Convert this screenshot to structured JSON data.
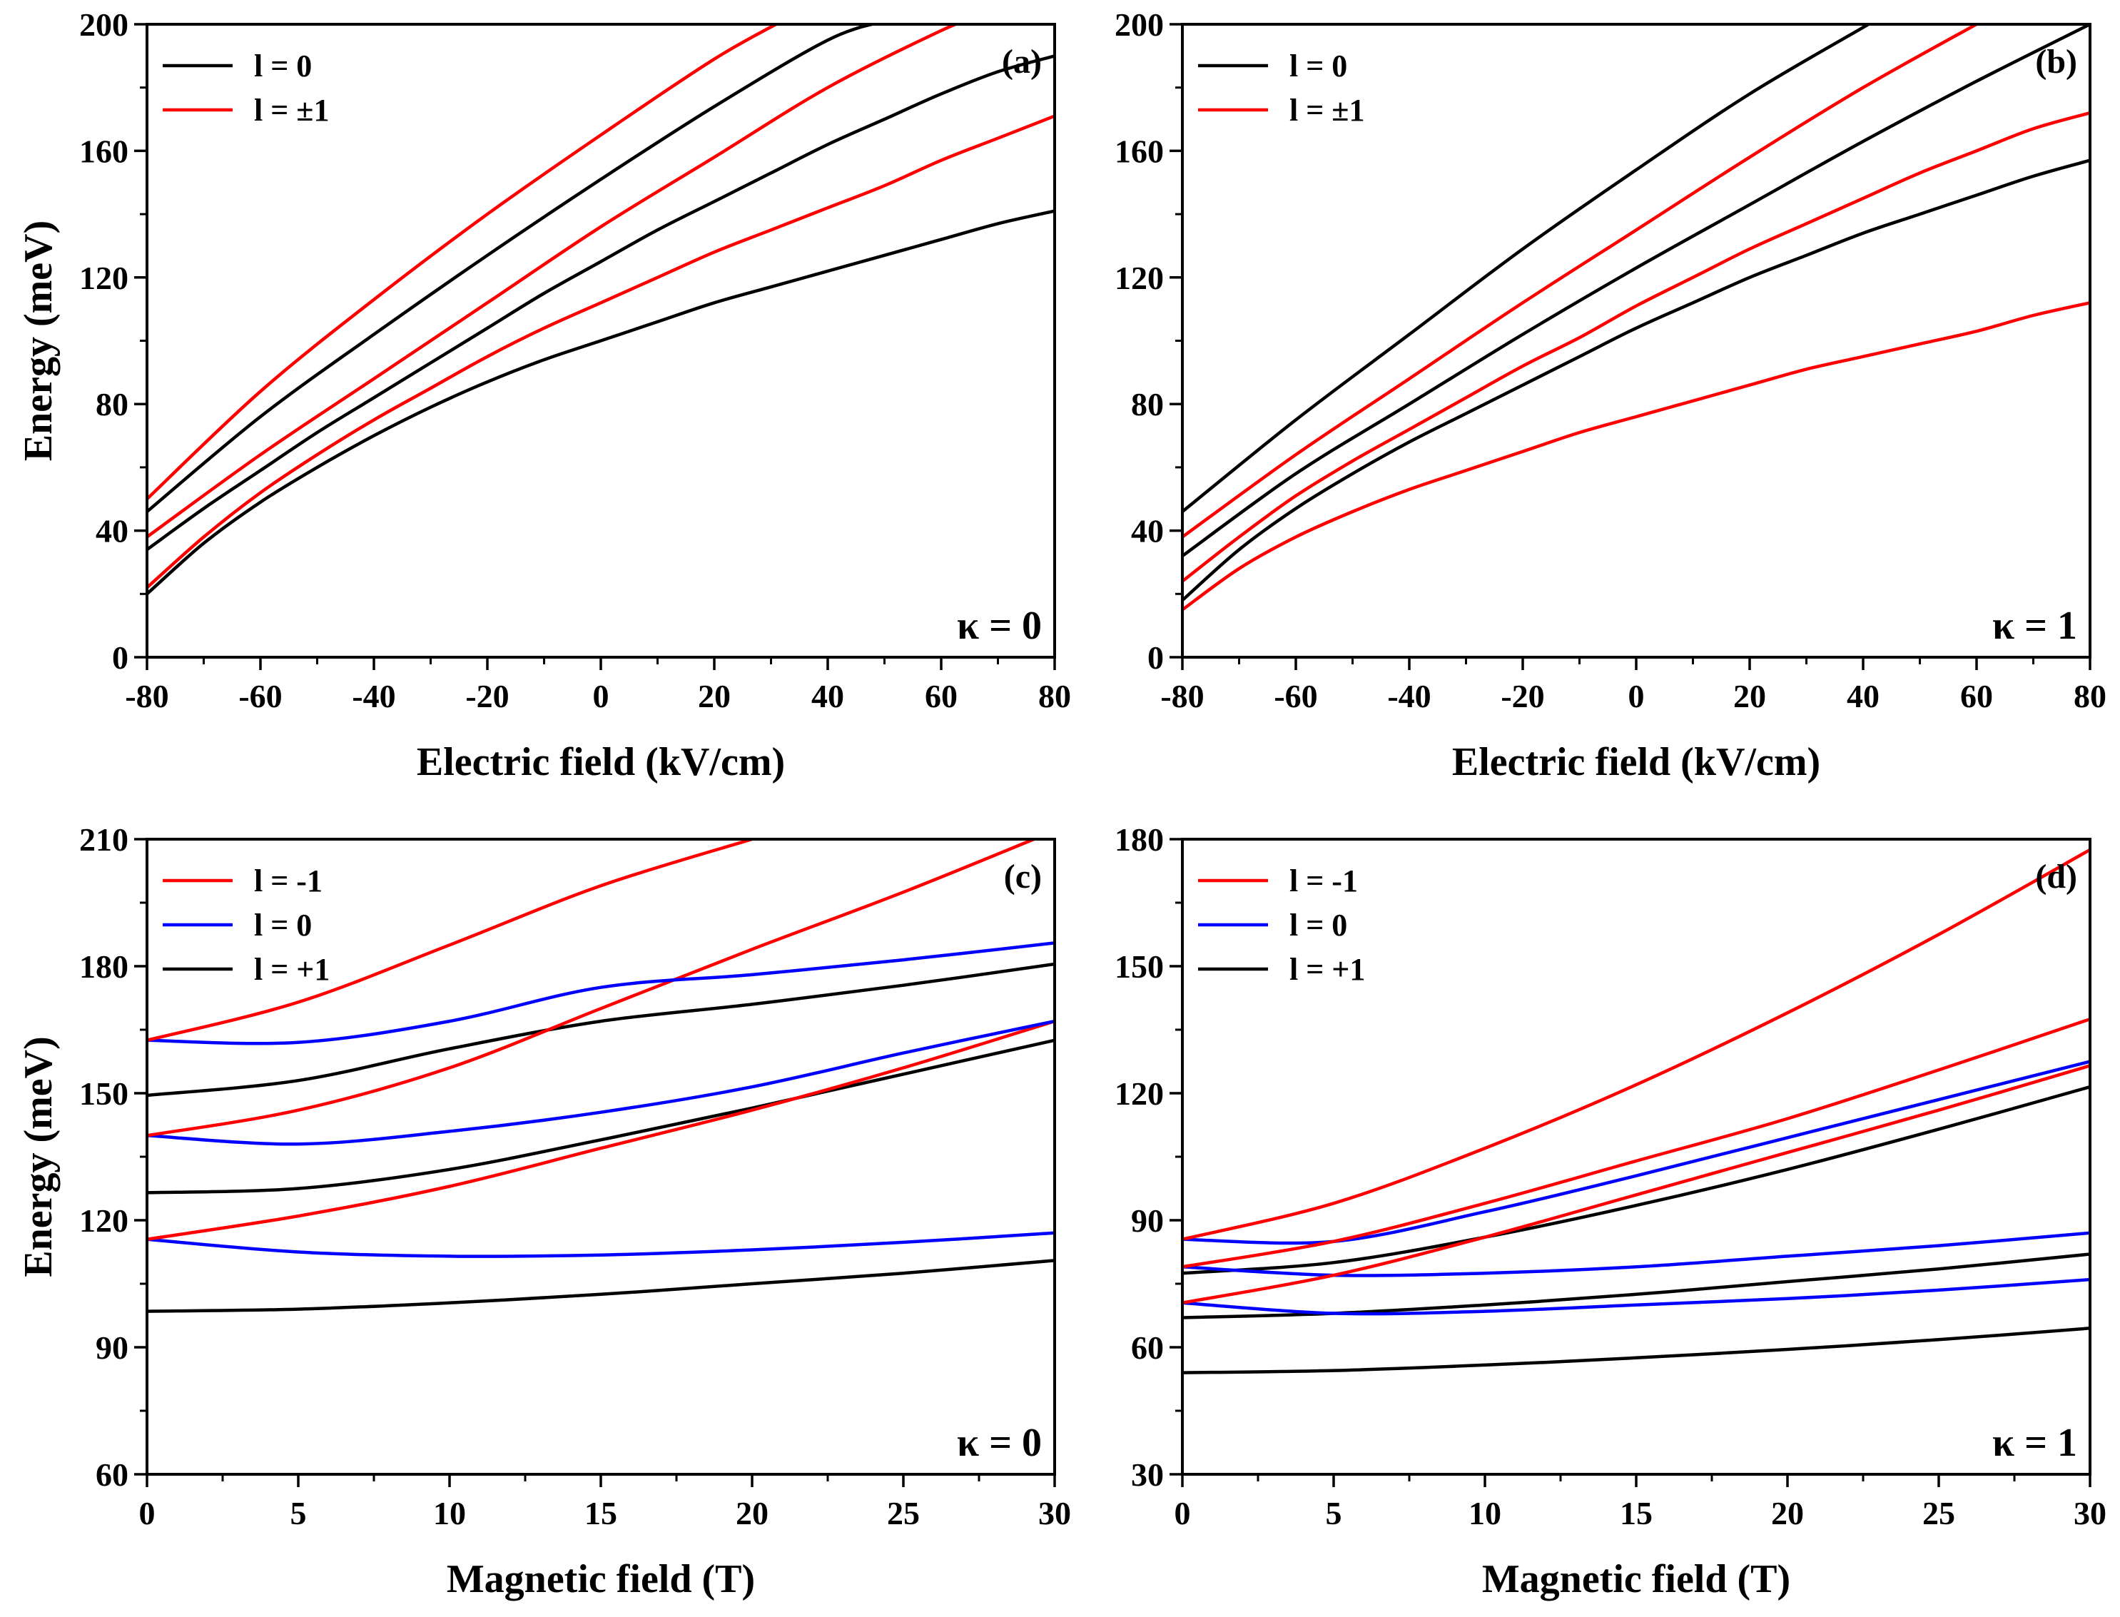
{
  "colors": {
    "black": "#000000",
    "red": "#ff0000",
    "blue": "#0000ff"
  },
  "chart_data": [
    {
      "type": "line",
      "panel_label": "(a)",
      "annotation": "κ = 0",
      "xlabel": "Electric field (kV/cm)",
      "ylabel": "Energy (meV)",
      "xlim": [
        -80,
        80
      ],
      "ylim": [
        0,
        200
      ],
      "xticks": [
        -80,
        -60,
        -40,
        -20,
        0,
        20,
        40,
        60,
        80
      ],
      "yticks": [
        0,
        40,
        80,
        120,
        160,
        200
      ],
      "legend": [
        {
          "label": "l = 0",
          "color": "black"
        },
        {
          "label": "l = ±1",
          "color": "red"
        }
      ],
      "series": [
        {
          "name": "l = 0 (1)",
          "color": "black",
          "x": [
            -80,
            -70,
            -60,
            -50,
            -40,
            -30,
            -20,
            -10,
            0,
            10,
            20,
            30,
            40,
            50,
            60,
            70,
            80
          ],
          "y": [
            20,
            36,
            49,
            60,
            70,
            79,
            87,
            94,
            100,
            106,
            112,
            117,
            122,
            127,
            132,
            137,
            141
          ]
        },
        {
          "name": "l = ±1 (1)",
          "color": "red",
          "x": [
            -80,
            -70,
            -60,
            -50,
            -40,
            -30,
            -20,
            -10,
            0,
            10,
            20,
            30,
            40,
            50,
            60,
            70,
            80
          ],
          "y": [
            22,
            38,
            52,
            64,
            75,
            85,
            95,
            104,
            112,
            120,
            128,
            135,
            142,
            149,
            157,
            164,
            171
          ]
        },
        {
          "name": "l = 0 (2)",
          "color": "black",
          "x": [
            -80,
            -70,
            -60,
            -50,
            -40,
            -30,
            -20,
            -10,
            0,
            10,
            20,
            30,
            40,
            50,
            60,
            70,
            80
          ],
          "y": [
            34,
            47,
            59,
            71,
            82,
            93,
            104,
            115,
            125,
            135,
            144,
            153,
            162,
            170,
            178,
            185,
            190
          ]
        },
        {
          "name": "l = ±1 (2)",
          "color": "red",
          "x": [
            -80,
            -60,
            -40,
            -20,
            0,
            20,
            40,
            60,
            66
          ],
          "y": [
            38,
            64,
            88,
            112,
            136,
            158,
            180,
            198,
            202
          ]
        },
        {
          "name": "l = 0 (3)",
          "color": "black",
          "x": [
            -80,
            -60,
            -40,
            -20,
            0,
            20,
            40,
            50
          ],
          "y": [
            46,
            76,
            102,
            127,
            151,
            174,
            195,
            201
          ]
        },
        {
          "name": "l = ±1 (3)",
          "color": "red",
          "x": [
            -80,
            -60,
            -40,
            -20,
            0,
            20,
            33
          ],
          "y": [
            50,
            84,
            113,
            140,
            165,
            189,
            202
          ]
        }
      ]
    },
    {
      "type": "line",
      "panel_label": "(b)",
      "annotation": "κ = 1",
      "xlabel": "Electric field (kV/cm)",
      "ylabel": "",
      "xlim": [
        -80,
        80
      ],
      "ylim": [
        0,
        200
      ],
      "xticks": [
        -80,
        -60,
        -40,
        -20,
        0,
        20,
        40,
        60,
        80
      ],
      "yticks": [
        0,
        40,
        80,
        120,
        160,
        200
      ],
      "legend": [
        {
          "label": "l = 0",
          "color": "black"
        },
        {
          "label": "l = ±1",
          "color": "red"
        }
      ],
      "series": [
        {
          "name": "l = ±1 (1)",
          "color": "red",
          "x": [
            -80,
            -70,
            -60,
            -50,
            -40,
            -30,
            -20,
            -10,
            0,
            10,
            20,
            30,
            40,
            50,
            60,
            70,
            80
          ],
          "y": [
            15,
            28,
            38,
            46,
            53,
            59,
            65,
            71,
            76,
            81,
            86,
            91,
            95,
            99,
            103,
            108,
            112
          ]
        },
        {
          "name": "l = 0 (1)",
          "color": "black",
          "x": [
            -80,
            -70,
            -60,
            -50,
            -40,
            -30,
            -20,
            -10,
            0,
            10,
            20,
            30,
            40,
            50,
            60,
            70,
            80
          ],
          "y": [
            18,
            34,
            47,
            58,
            68,
            77,
            86,
            95,
            104,
            112,
            120,
            127,
            134,
            140,
            146,
            152,
            157
          ]
        },
        {
          "name": "l = ±1 (2)",
          "color": "red",
          "x": [
            -80,
            -70,
            -60,
            -50,
            -40,
            -30,
            -20,
            -10,
            0,
            10,
            20,
            30,
            40,
            50,
            60,
            70,
            80
          ],
          "y": [
            24,
            38,
            51,
            62,
            72,
            82,
            92,
            101,
            111,
            120,
            129,
            137,
            145,
            153,
            160,
            167,
            172
          ]
        },
        {
          "name": "l = 0 (2)",
          "color": "black",
          "x": [
            -80,
            -60,
            -40,
            -20,
            0,
            20,
            40,
            60,
            80
          ],
          "y": [
            32,
            58,
            80,
            102,
            123,
            143,
            163,
            182,
            200
          ]
        },
        {
          "name": "l = ±1 (3)",
          "color": "red",
          "x": [
            -80,
            -60,
            -40,
            -20,
            0,
            20,
            40,
            61
          ],
          "y": [
            38,
            64,
            88,
            112,
            135,
            158,
            180,
            201
          ]
        },
        {
          "name": "l = 0 (3)",
          "color": "black",
          "x": [
            -80,
            -60,
            -40,
            -20,
            0,
            20,
            40,
            42
          ],
          "y": [
            46,
            75,
            102,
            129,
            154,
            178,
            199,
            201
          ]
        }
      ]
    },
    {
      "type": "line",
      "panel_label": "(c)",
      "annotation": "κ = 0",
      "xlabel": "Magnetic field (T)",
      "ylabel": "Energy (meV)",
      "xlim": [
        0,
        30
      ],
      "ylim": [
        60,
        210
      ],
      "xticks": [
        0,
        5,
        10,
        15,
        20,
        25,
        30
      ],
      "yticks": [
        60,
        90,
        120,
        150,
        180,
        210
      ],
      "legend": [
        {
          "label": "l = -1",
          "color": "red"
        },
        {
          "label": "l = 0",
          "color": "blue"
        },
        {
          "label": "l = +1",
          "color": "black"
        }
      ],
      "series": [
        {
          "name": "l = +1 (1)",
          "color": "black",
          "x": [
            0,
            5,
            10,
            15,
            20,
            25,
            30
          ],
          "y": [
            98.5,
            99,
            100.5,
            102.5,
            105,
            107.5,
            110.5
          ]
        },
        {
          "name": "l = 0 (1)",
          "color": "blue",
          "x": [
            0,
            5,
            10,
            15,
            20,
            25,
            30
          ],
          "y": [
            115.5,
            112.5,
            111.5,
            111.8,
            113,
            114.8,
            117
          ]
        },
        {
          "name": "l = +1 (2)",
          "color": "black",
          "x": [
            0,
            5,
            10,
            15,
            20,
            25,
            30
          ],
          "y": [
            126.5,
            127.5,
            132,
            139,
            146.5,
            154.5,
            162.5
          ]
        },
        {
          "name": "l = -1 (1)",
          "color": "red",
          "x": [
            0,
            5,
            10,
            15,
            20,
            25,
            30
          ],
          "y": [
            115.5,
            121,
            128,
            137,
            146,
            156,
            167
          ]
        },
        {
          "name": "l = 0 (2)",
          "color": "blue",
          "x": [
            0,
            5,
            10,
            15,
            20,
            25,
            30
          ],
          "y": [
            140,
            138,
            141,
            145.5,
            151.5,
            159.5,
            167
          ]
        },
        {
          "name": "l = +1 (3)",
          "color": "black",
          "x": [
            0,
            5,
            10,
            15,
            20,
            25,
            30
          ],
          "y": [
            149.5,
            153,
            160.5,
            167,
            171,
            175.5,
            180.5
          ]
        },
        {
          "name": "l = -1 (2)",
          "color": "red",
          "x": [
            0,
            5,
            10,
            15,
            20,
            25,
            30
          ],
          "y": [
            140,
            146,
            156,
            170,
            184,
            197.5,
            212
          ]
        },
        {
          "name": "l = 0 (3)",
          "color": "blue",
          "x": [
            0,
            5,
            10,
            15,
            20,
            25,
            30
          ],
          "y": [
            162.5,
            162,
            167,
            175,
            178,
            181.5,
            185.5
          ]
        },
        {
          "name": "l = -1 (3)",
          "color": "red",
          "x": [
            0,
            5,
            10,
            15,
            20
          ],
          "y": [
            162.5,
            171.5,
            185,
            199,
            210
          ]
        }
      ]
    },
    {
      "type": "line",
      "panel_label": "(d)",
      "annotation": "κ = 1",
      "xlabel": "Magnetic field (T)",
      "ylabel": "",
      "xlim": [
        0,
        30
      ],
      "ylim": [
        30,
        180
      ],
      "xticks": [
        0,
        5,
        10,
        15,
        20,
        25,
        30
      ],
      "yticks": [
        30,
        60,
        90,
        120,
        150,
        180
      ],
      "legend": [
        {
          "label": "l = -1",
          "color": "red"
        },
        {
          "label": "l = 0",
          "color": "blue"
        },
        {
          "label": "l = +1",
          "color": "black"
        }
      ],
      "series": [
        {
          "name": "l = +1 (1)",
          "color": "black",
          "x": [
            0,
            5,
            10,
            15,
            20,
            25,
            30
          ],
          "y": [
            54,
            54.5,
            55.8,
            57.5,
            59.5,
            61.8,
            64.5
          ]
        },
        {
          "name": "l = +1 (2)",
          "color": "black",
          "x": [
            0,
            5,
            10,
            15,
            20,
            25,
            30
          ],
          "y": [
            67,
            68,
            70,
            72.5,
            75.5,
            78.5,
            82
          ]
        },
        {
          "name": "l = 0 (1)",
          "color": "blue",
          "x": [
            0,
            5,
            10,
            15,
            20,
            25,
            30
          ],
          "y": [
            70.5,
            68,
            68.5,
            70,
            71.5,
            73.5,
            76
          ]
        },
        {
          "name": "l = +1 (3)",
          "color": "black",
          "x": [
            0,
            5,
            10,
            15,
            20,
            25,
            30
          ],
          "y": [
            77.5,
            80,
            86,
            93.5,
            102,
            111.5,
            121.5
          ]
        },
        {
          "name": "l = 0 (2)",
          "color": "blue",
          "x": [
            0,
            5,
            10,
            15,
            20,
            25,
            30
          ],
          "y": [
            79,
            77,
            77.5,
            79,
            81.5,
            84,
            87
          ]
        },
        {
          "name": "l = -1 (1)",
          "color": "red",
          "x": [
            0,
            5,
            10,
            15,
            20,
            25,
            30
          ],
          "y": [
            70.5,
            77,
            86,
            96,
            106,
            116,
            126.5
          ]
        },
        {
          "name": "l = 0 (3)",
          "color": "blue",
          "x": [
            0,
            5,
            10,
            15,
            20,
            25,
            30
          ],
          "y": [
            85.5,
            85,
            92,
            100.5,
            109.5,
            118.5,
            127.5
          ]
        },
        {
          "name": "l = -1 (2)",
          "color": "red",
          "x": [
            0,
            5,
            10,
            15,
            20,
            25,
            30
          ],
          "y": [
            79,
            85,
            94,
            104,
            114,
            125.5,
            137.5
          ]
        },
        {
          "name": "l = -1 (3)",
          "color": "red",
          "x": [
            0,
            5,
            10,
            15,
            20,
            25,
            30
          ],
          "y": [
            85.5,
            94,
            107,
            122,
            139,
            157.5,
            177.5
          ]
        }
      ]
    }
  ]
}
